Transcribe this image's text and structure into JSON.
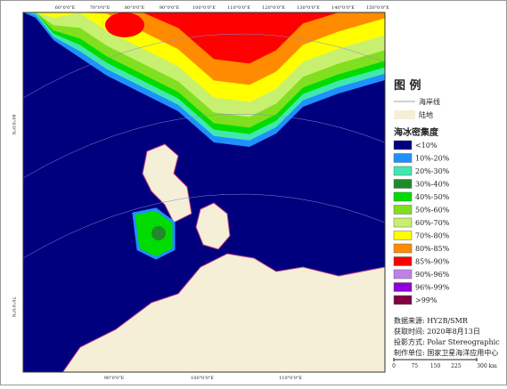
{
  "map": {
    "top_lon_labels": [
      "60°0'0\"E",
      "70°0'0\"E",
      "80°0'0\"E",
      "90°0'0\"E",
      "100°0'0\"E",
      "110°0'0\"E",
      "120°0'0\"E",
      "130°0'0\"E",
      "140°0'0\"E",
      "150°0'0\"E"
    ],
    "bottom_lon_labels": [
      "90°0'0\"E",
      "100°0'0\"E",
      "110°0'0\"E"
    ],
    "left_lat_labels": [
      "80°0'0\"N",
      "70°0'0\"N"
    ]
  },
  "legend": {
    "title": "图 例",
    "coastline": "海岸线",
    "land": "陆地",
    "concentration_title": "海冰密集度",
    "items": [
      {
        "label": "<10%",
        "color": "#00007f"
      },
      {
        "label": "10%-20%",
        "color": "#1e90ff"
      },
      {
        "label": "20%-30%",
        "color": "#40e8b0"
      },
      {
        "label": "30%-40%",
        "color": "#1f8a2a"
      },
      {
        "label": "40%-50%",
        "color": "#00dc00"
      },
      {
        "label": "50%-60%",
        "color": "#80e020"
      },
      {
        "label": "60%-70%",
        "color": "#c8f070"
      },
      {
        "label": "70%-80%",
        "color": "#ffff00"
      },
      {
        "label": "80%-85%",
        "color": "#ff8c00"
      },
      {
        "label": "85%-90%",
        "color": "#ff0000"
      },
      {
        "label": "90%-96%",
        "color": "#c080e8"
      },
      {
        "label": "96%-99%",
        "color": "#9000d8"
      },
      {
        "label": ">99%",
        "color": "#800040"
      }
    ]
  },
  "info": [
    "数据来源:  HY2B/SMR",
    "获取时间:  2020年8月13日",
    "投影方式:  Polar Stereographic",
    "制作单位:  国家卫星海洋应用中心"
  ],
  "scale": [
    "0",
    "75",
    "150",
    "225",
    "300 km"
  ]
}
